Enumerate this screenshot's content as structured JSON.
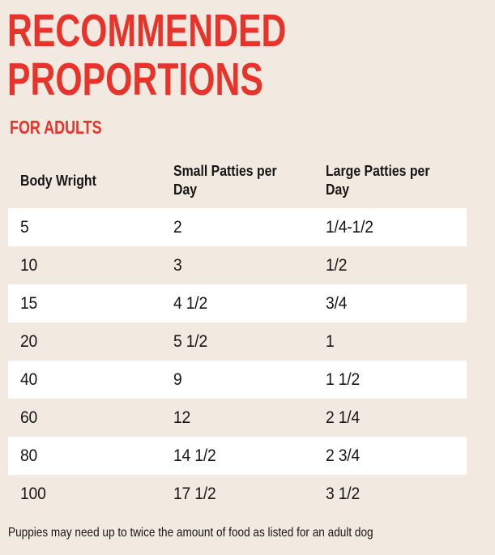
{
  "page": {
    "title_line1": "RECOMMENDED",
    "title_line2": "PROPORTIONS",
    "subtitle": "FOR ADULTS",
    "footnote": "Puppies may need up to twice the amount of food as listed for an adult dog"
  },
  "colors": {
    "accent_red": "#e8332a",
    "background_beige": "#f2e9e0",
    "row_highlight_white": "#ffffff",
    "text_dark": "#161616"
  },
  "table": {
    "columns": [
      "Body Wright",
      "Small Patties per Day",
      "Large Patties per Day"
    ],
    "rows": [
      [
        "5",
        "2",
        "1/4-1/2"
      ],
      [
        "10",
        "3",
        "1/2"
      ],
      [
        "15",
        "4 1/2",
        "3/4"
      ],
      [
        "20",
        "5 1/2",
        "1"
      ],
      [
        "40",
        "9",
        "1 1/2"
      ],
      [
        "60",
        "12",
        "2 1/4"
      ],
      [
        "80",
        "14 1/2",
        "2 3/4"
      ],
      [
        "100",
        "17 1/2",
        "3 1/2"
      ]
    ]
  }
}
